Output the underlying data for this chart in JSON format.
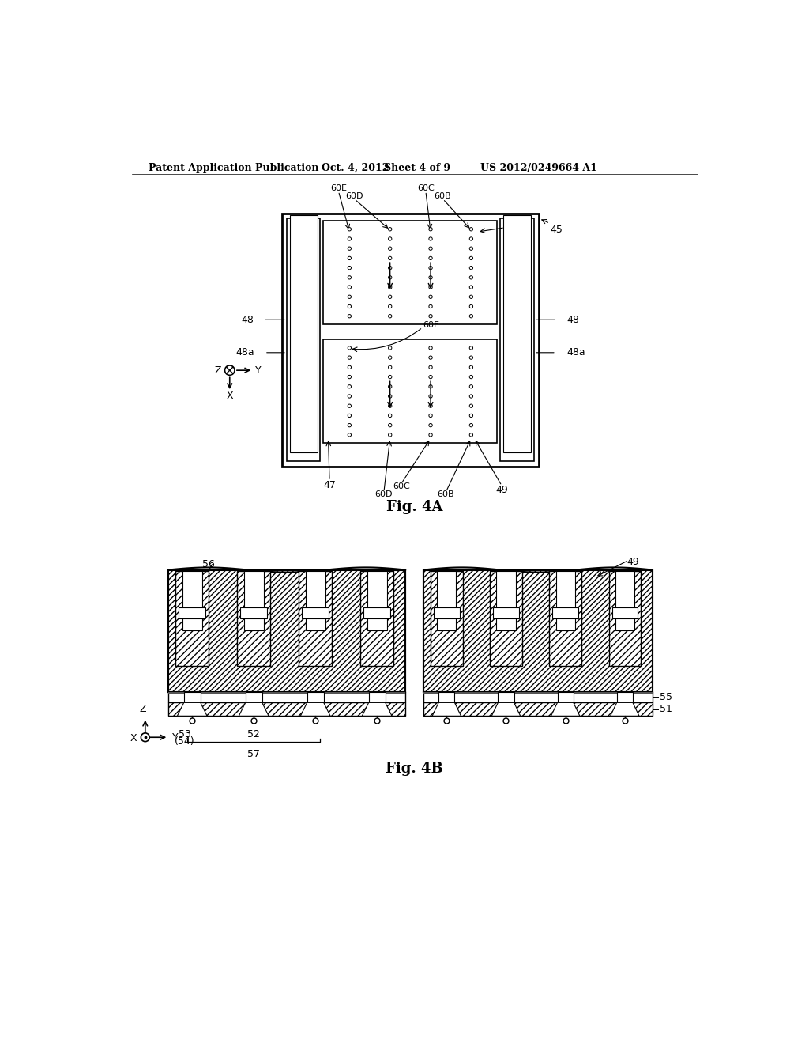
{
  "bg_color": "#ffffff",
  "header_text": "Patent Application Publication",
  "header_date": "Oct. 4, 2012",
  "header_sheet": "Sheet 4 of 9",
  "header_patent": "US 2012/0249664 A1",
  "fig4a_label": "Fig. 4A",
  "fig4b_label": "Fig. 4B",
  "line_color": "#000000"
}
